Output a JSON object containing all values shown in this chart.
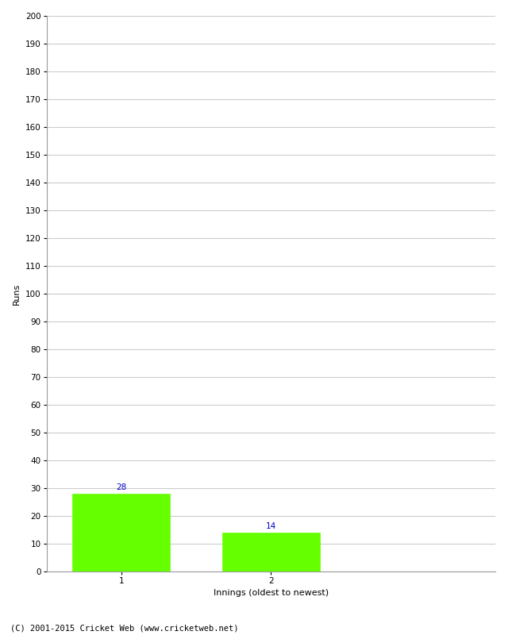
{
  "innings": [
    1,
    2
  ],
  "runs": [
    28,
    14
  ],
  "bar_color": "#66ff00",
  "bar_edgecolor": "#66ff00",
  "xlabel": "Innings (oldest to newest)",
  "ylabel": "Runs",
  "ylim": [
    0,
    200
  ],
  "yticks": [
    0,
    10,
    20,
    30,
    40,
    50,
    60,
    70,
    80,
    90,
    100,
    110,
    120,
    130,
    140,
    150,
    160,
    170,
    180,
    190,
    200
  ],
  "value_label_color": "#0000cc",
  "value_label_fontsize": 7.5,
  "axis_label_fontsize": 8,
  "tick_fontsize": 7.5,
  "footer_text": "(C) 2001-2015 Cricket Web (www.cricketweb.net)",
  "footer_fontsize": 7.5,
  "background_color": "#ffffff",
  "grid_color": "#cccccc",
  "bar_width": 0.65,
  "xlim": [
    0.5,
    3.5
  ]
}
